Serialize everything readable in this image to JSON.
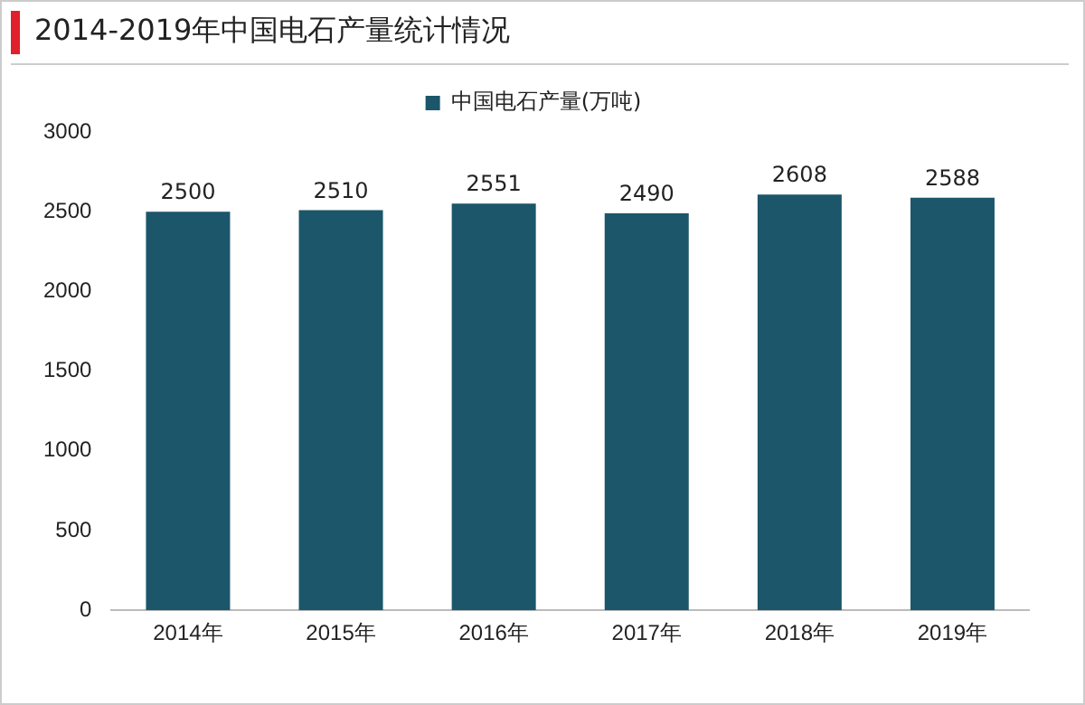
{
  "chart_data": {
    "type": "bar",
    "title": "2014-2019年中国电石产量统计情况",
    "categories": [
      "2014年",
      "2015年",
      "2016年",
      "2017年",
      "2018年",
      "2019年"
    ],
    "series": [
      {
        "name": "中国电石产量(万吨)",
        "color": "#1b566b",
        "values": [
          2500,
          2510,
          2551,
          2490,
          2608,
          2588
        ]
      }
    ],
    "ylim": [
      0,
      3000
    ],
    "yticks": [
      0,
      500,
      1000,
      1500,
      2000,
      2500,
      3000
    ],
    "grid": false,
    "legend": "top",
    "data_labels": true
  }
}
